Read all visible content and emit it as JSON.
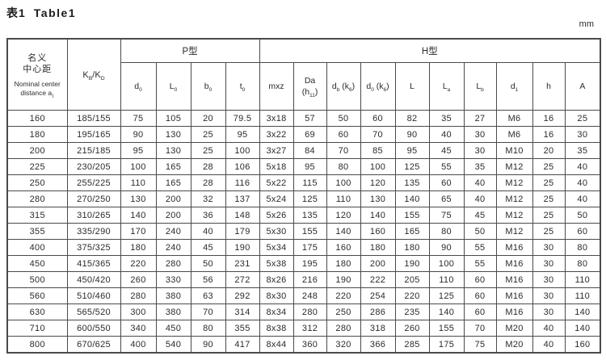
{
  "page": {
    "title_zh": "表1",
    "title_en": "Table1",
    "unit": "mm"
  },
  "table": {
    "col1_header": {
      "zh1": "名义",
      "zh2": "中心距",
      "en1": "Nominal center",
      "en2": "distance a~1~"
    },
    "col2_header": "K~B~/K~D~",
    "groups": [
      {
        "label": "P型",
        "span": 4
      },
      {
        "label": "H型",
        "span": 10
      }
    ],
    "subheaders": [
      "d~0~",
      "L~0~",
      "b~0~",
      "t~0~",
      "mxz",
      "Da\n(h~11~)",
      "d~b~ (k~6~)",
      "d~0~ (k~6~)",
      "L",
      "L~a~",
      "L~b~",
      "d~1~",
      "h",
      "A"
    ],
    "rows": [
      [
        "160",
        "185/155",
        "75",
        "105",
        "20",
        "79.5",
        "3x18",
        "57",
        "50",
        "60",
        "82",
        "35",
        "27",
        "M6",
        "16",
        "25"
      ],
      [
        "180",
        "195/165",
        "90",
        "130",
        "25",
        "95",
        "3x22",
        "69",
        "60",
        "70",
        "90",
        "40",
        "30",
        "M6",
        "16",
        "30"
      ],
      [
        "200",
        "215/185",
        "95",
        "130",
        "25",
        "100",
        "3x27",
        "84",
        "70",
        "85",
        "95",
        "45",
        "30",
        "M10",
        "20",
        "35"
      ],
      [
        "225",
        "230/205",
        "100",
        "165",
        "28",
        "106",
        "5x18",
        "95",
        "80",
        "100",
        "125",
        "55",
        "35",
        "M12",
        "25",
        "40"
      ],
      [
        "250",
        "255/225",
        "110",
        "165",
        "28",
        "116",
        "5x22",
        "115",
        "100",
        "120",
        "135",
        "60",
        "40",
        "M12",
        "25",
        "40"
      ],
      [
        "280",
        "270/250",
        "130",
        "200",
        "32",
        "137",
        "5x24",
        "125",
        "110",
        "130",
        "140",
        "65",
        "40",
        "M12",
        "25",
        "40"
      ],
      [
        "315",
        "310/265",
        "140",
        "200",
        "36",
        "148",
        "5x26",
        "135",
        "120",
        "140",
        "155",
        "75",
        "45",
        "M12",
        "25",
        "50"
      ],
      [
        "355",
        "335/290",
        "170",
        "240",
        "40",
        "179",
        "5x30",
        "155",
        "140",
        "160",
        "165",
        "80",
        "50",
        "M12",
        "25",
        "60"
      ],
      [
        "400",
        "375/325",
        "180",
        "240",
        "45",
        "190",
        "5x34",
        "175",
        "160",
        "180",
        "180",
        "90",
        "55",
        "M16",
        "30",
        "80"
      ],
      [
        "450",
        "415/365",
        "220",
        "280",
        "50",
        "231",
        "5x38",
        "195",
        "180",
        "200",
        "190",
        "100",
        "55",
        "M16",
        "30",
        "80"
      ],
      [
        "500",
        "450/420",
        "260",
        "330",
        "56",
        "272",
        "8x26",
        "216",
        "190",
        "222",
        "205",
        "110",
        "60",
        "M16",
        "30",
        "110"
      ],
      [
        "560",
        "510/460",
        "280",
        "380",
        "63",
        "292",
        "8x30",
        "248",
        "220",
        "254",
        "220",
        "125",
        "60",
        "M16",
        "30",
        "110"
      ],
      [
        "630",
        "565/520",
        "300",
        "380",
        "70",
        "314",
        "8x34",
        "280",
        "250",
        "286",
        "235",
        "140",
        "60",
        "M16",
        "30",
        "140"
      ],
      [
        "710",
        "600/550",
        "340",
        "450",
        "80",
        "355",
        "8x38",
        "312",
        "280",
        "318",
        "260",
        "155",
        "70",
        "M20",
        "40",
        "140"
      ],
      [
        "800",
        "670/625",
        "400",
        "540",
        "90",
        "417",
        "8x44",
        "360",
        "320",
        "366",
        "285",
        "175",
        "75",
        "M20",
        "40",
        "160"
      ]
    ]
  }
}
